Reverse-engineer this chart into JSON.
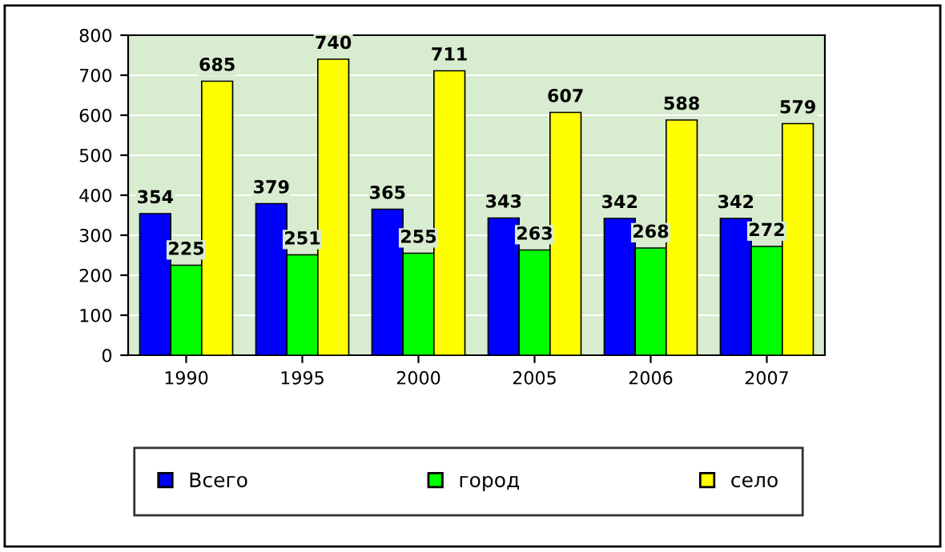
{
  "chart_data": {
    "type": "bar",
    "categories": [
      "1990",
      "1995",
      "2000",
      "2005",
      "2006",
      "2007"
    ],
    "series": [
      {
        "name": "Всего",
        "color": "#0000ff",
        "values": [
          354,
          379,
          365,
          343,
          342,
          342
        ]
      },
      {
        "name": "город",
        "color": "#00ff00",
        "values": [
          225,
          251,
          255,
          263,
          268,
          272
        ]
      },
      {
        "name": "село",
        "color": "#ffff00",
        "values": [
          685,
          740,
          711,
          607,
          588,
          579
        ]
      }
    ],
    "ylim": [
      0,
      800
    ],
    "yticks": [
      0,
      100,
      200,
      300,
      400,
      500,
      600,
      700,
      800
    ],
    "grid": "y",
    "legend": "bottom",
    "data_labels": true
  }
}
